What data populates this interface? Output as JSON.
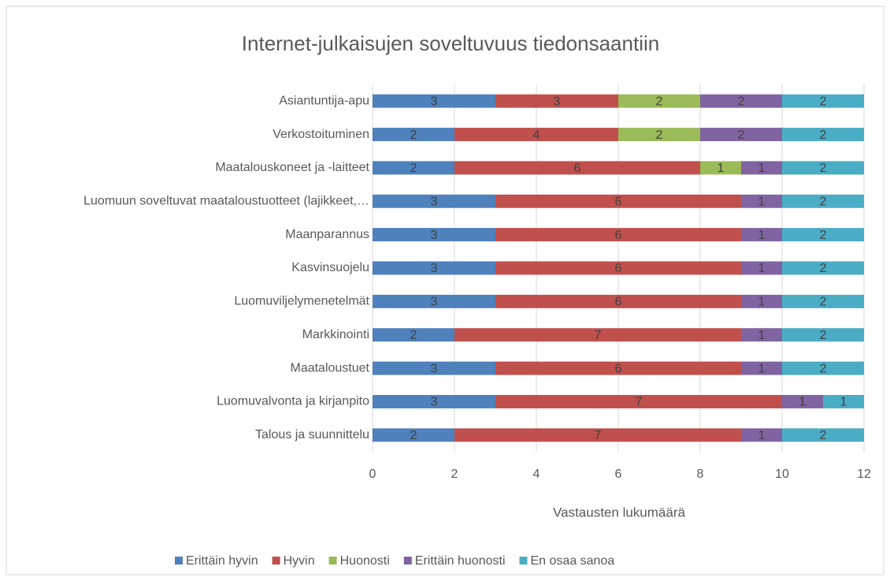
{
  "chart_data": {
    "type": "stacked-barh",
    "title": "Internet-julkaisujen soveltuvuus tiedonsaantiin",
    "x_label": "Vastausten lukumäärä",
    "categories": [
      "Asiantuntija-apu",
      "Verkostoituminen",
      "Maatalouskoneet ja -laitteet",
      "Luomuun soveltuvat maataloustuotteet (lajikkeet,…",
      "Maanparannus",
      "Kasvinsuojelu",
      "Luomuviljelymenetelmät",
      "Markkinointi",
      "Maataloustuet",
      "Luomuvalvonta ja kirjanpito",
      "Talous ja suunnittelu"
    ],
    "series": [
      {
        "name": "Erittäin hyvin",
        "color": "#4f81bd",
        "values": [
          3,
          2,
          2,
          3,
          3,
          3,
          3,
          2,
          3,
          3,
          2
        ]
      },
      {
        "name": "Hyvin",
        "color": "#c0504d",
        "values": [
          3,
          4,
          6,
          6,
          6,
          6,
          6,
          7,
          6,
          7,
          7
        ]
      },
      {
        "name": "Huonosti",
        "color": "#9bbb59",
        "values": [
          2,
          2,
          1,
          null,
          null,
          null,
          null,
          null,
          null,
          null,
          null
        ]
      },
      {
        "name": "Erittäin huonosti",
        "color": "#8064a2",
        "values": [
          2,
          2,
          1,
          1,
          1,
          1,
          1,
          1,
          1,
          1,
          1
        ]
      },
      {
        "name": "En osaa sanoa",
        "color": "#4bacc6",
        "values": [
          2,
          2,
          2,
          2,
          2,
          2,
          2,
          2,
          2,
          1,
          2
        ]
      }
    ],
    "xlim": [
      0,
      12
    ],
    "xticks": [
      0,
      2,
      4,
      6,
      8,
      10,
      12
    ],
    "grid": true,
    "legend": "bottom"
  }
}
